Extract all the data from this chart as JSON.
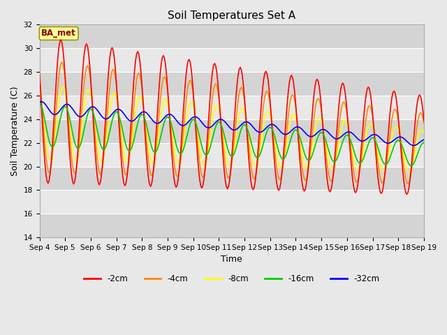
{
  "title": "Soil Temperatures Set A",
  "xlabel": "Time",
  "ylabel": "Soil Temperature (C)",
  "ylim": [
    14,
    32
  ],
  "yticks": [
    14,
    16,
    18,
    20,
    22,
    24,
    26,
    28,
    30,
    32
  ],
  "xlim_days": [
    0,
    15
  ],
  "x_tick_labels": [
    "Sep 4",
    "Sep 5",
    "Sep 6",
    "Sep 7",
    "Sep 8",
    "Sep 9",
    "Sep 10",
    "Sep 11",
    "Sep 12",
    "Sep 13",
    "Sep 14",
    "Sep 15",
    "Sep 16",
    "Sep 17",
    "Sep 18",
    "Sep 19"
  ],
  "colors": {
    "-2cm": "#ff0000",
    "-4cm": "#ff8800",
    "-8cm": "#ffff00",
    "-16cm": "#00cc00",
    "-32cm": "#0000ff"
  },
  "legend_label": "BA_met",
  "legend_bg": "#ffff99",
  "legend_border": "#999900",
  "plot_bg": "#e0e0e0",
  "band_light": "#e8e8e8",
  "band_dark": "#d0d0d0",
  "linewidth": 1.2,
  "title_fontsize": 11,
  "axis_fontsize": 9,
  "tick_fontsize": 7.5
}
